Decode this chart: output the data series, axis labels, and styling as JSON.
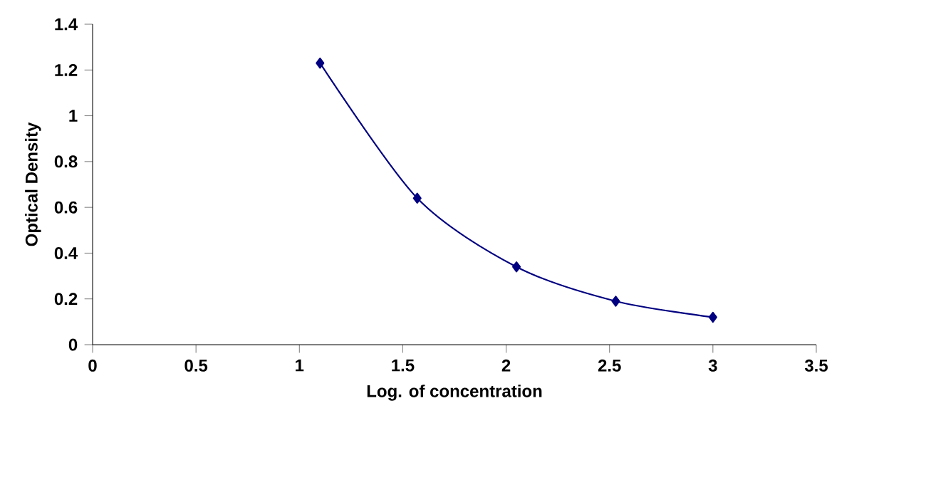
{
  "chart_data": {
    "type": "line",
    "xlabel": "Log. of concentration",
    "ylabel": "Optical Density",
    "x": [
      1.1,
      1.57,
      2.05,
      2.53,
      3.0
    ],
    "series": [
      {
        "color": "#000080",
        "values": [
          1.23,
          0.64,
          0.34,
          0.19,
          0.12
        ]
      }
    ],
    "xlim": [
      0,
      3.5
    ],
    "ylim": [
      0,
      1.4
    ],
    "xticks": [
      0,
      0.5,
      1,
      1.5,
      2,
      2.5,
      3,
      3.5
    ],
    "yticks": [
      0,
      0.2,
      0.4,
      0.6,
      0.8,
      1,
      1.2,
      1.4
    ],
    "marker": "diamond",
    "line_style": "solid"
  }
}
